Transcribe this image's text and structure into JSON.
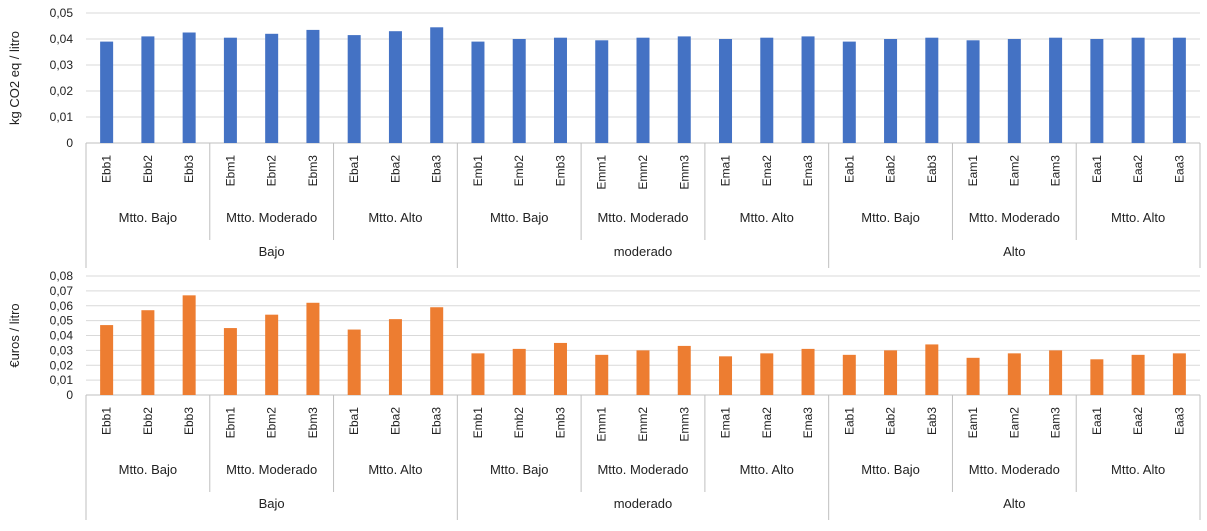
{
  "chart_data": [
    {
      "type": "bar",
      "title": "",
      "xlabel": "",
      "ylabel": "kg CO2 eq / litro",
      "ylim": [
        0,
        0.05
      ],
      "yticks": [
        0,
        0.01,
        0.02,
        0.03,
        0.04,
        0.05
      ],
      "ytick_labels": [
        "0",
        "0,01",
        "0,02",
        "0,03",
        "0,04",
        "0,05"
      ],
      "grid": true,
      "color": "#4472C4",
      "categories": [
        "Ebb1",
        "Ebb2",
        "Ebb3",
        "Ebm1",
        "Ebm2",
        "Ebm3",
        "Eba1",
        "Eba2",
        "Eba3",
        "Emb1",
        "Emb2",
        "Emb3",
        "Emm1",
        "Emm2",
        "Emm3",
        "Ema1",
        "Ema2",
        "Ema3",
        "Eab1",
        "Eab2",
        "Eab3",
        "Eam1",
        "Eam2",
        "Eam3",
        "Eaa1",
        "Eaa2",
        "Eaa3"
      ],
      "values": [
        0.039,
        0.041,
        0.0425,
        0.0405,
        0.042,
        0.0435,
        0.0415,
        0.043,
        0.0445,
        0.039,
        0.04,
        0.0405,
        0.0395,
        0.0405,
        0.041,
        0.04,
        0.0405,
        0.041,
        0.039,
        0.04,
        0.0405,
        0.0395,
        0.04,
        0.0405,
        0.04,
        0.0405,
        0.0405
      ],
      "groups_level1": [
        "Mtto. Bajo",
        "Mtto. Moderado",
        "Mtto.  Alto",
        "Mtto. Bajo",
        "Mtto. Moderado",
        "Mtto.  Alto",
        "Mtto. Bajo",
        "Mtto. Moderado",
        "Mtto.  Alto"
      ],
      "groups_level2": [
        "Bajo",
        "moderado",
        "Alto"
      ]
    },
    {
      "type": "bar",
      "title": "",
      "xlabel": "",
      "ylabel": "€uros / litro",
      "ylim": [
        0,
        0.08
      ],
      "yticks": [
        0,
        0.01,
        0.02,
        0.03,
        0.04,
        0.05,
        0.06,
        0.07,
        0.08
      ],
      "ytick_labels": [
        "0",
        "0,01",
        "0,02",
        "0,03",
        "0,04",
        "0,05",
        "0,06",
        "0,07",
        "0,08"
      ],
      "grid": true,
      "color": "#ED7D31",
      "categories": [
        "Ebb1",
        "Ebb2",
        "Ebb3",
        "Ebm1",
        "Ebm2",
        "Ebm3",
        "Eba1",
        "Eba2",
        "Eba3",
        "Emb1",
        "Emb2",
        "Emb3",
        "Emm1",
        "Emm2",
        "Emm3",
        "Ema1",
        "Ema2",
        "Ema3",
        "Eab1",
        "Eab2",
        "Eab3",
        "Eam1",
        "Eam2",
        "Eam3",
        "Eaa1",
        "Eaa2",
        "Eaa3"
      ],
      "values": [
        0.047,
        0.057,
        0.067,
        0.045,
        0.054,
        0.062,
        0.044,
        0.051,
        0.059,
        0.028,
        0.031,
        0.035,
        0.027,
        0.03,
        0.033,
        0.026,
        0.028,
        0.031,
        0.027,
        0.03,
        0.034,
        0.025,
        0.028,
        0.03,
        0.024,
        0.027,
        0.028
      ],
      "groups_level1": [
        "Mtto. Bajo",
        "Mtto. Moderado",
        "Mtto.  Alto",
        "Mtto. Bajo",
        "Mtto. Moderado",
        "Mtto.  Alto",
        "Mtto. Bajo",
        "Mtto. Moderado",
        "Mtto.  Alto"
      ],
      "groups_level2": [
        "Bajo",
        "moderado",
        "Alto"
      ]
    }
  ]
}
